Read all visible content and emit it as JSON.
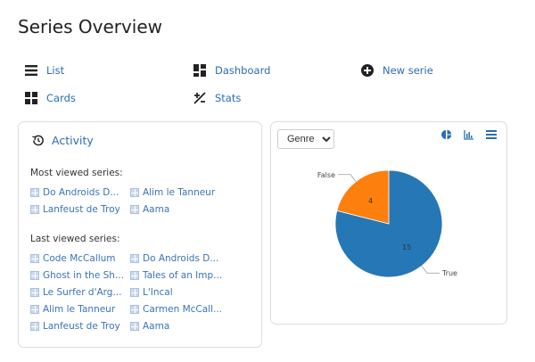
{
  "page": {
    "title": "Series Overview"
  },
  "nav": [
    {
      "label": "List",
      "icon": "list-icon"
    },
    {
      "label": "Dashboard",
      "icon": "dashboard-icon"
    },
    {
      "label": "New serie",
      "icon": "plus-circle-icon"
    },
    {
      "label": "Cards",
      "icon": "cards-icon"
    },
    {
      "label": "Stats",
      "icon": "plus-minus-icon"
    }
  ],
  "activity": {
    "title": "Activity",
    "most_label": "Most viewed series:",
    "most": [
      "Do Androids D...",
      "Alim le Tanneur",
      "Lanfeust de Troy",
      "Aama"
    ],
    "last_label": "Last viewed series:",
    "last": [
      "Code McCallum",
      "Do Androids D...",
      "Ghost in the Sh...",
      "Tales of an Imp...",
      "Le Surfer d'Arg...",
      "L'Incal",
      "Alim le Tanneur",
      "Carmen McCall...",
      "Lanfeust de Troy",
      "Aama"
    ]
  },
  "stats": {
    "select_value": "Genre",
    "accent": "#2a6db5"
  },
  "chart_data": {
    "type": "pie",
    "slices": [
      {
        "label": "True",
        "value": 15,
        "color": "#2577b5"
      },
      {
        "label": "False",
        "value": 4,
        "color": "#fd7f0e"
      }
    ]
  }
}
